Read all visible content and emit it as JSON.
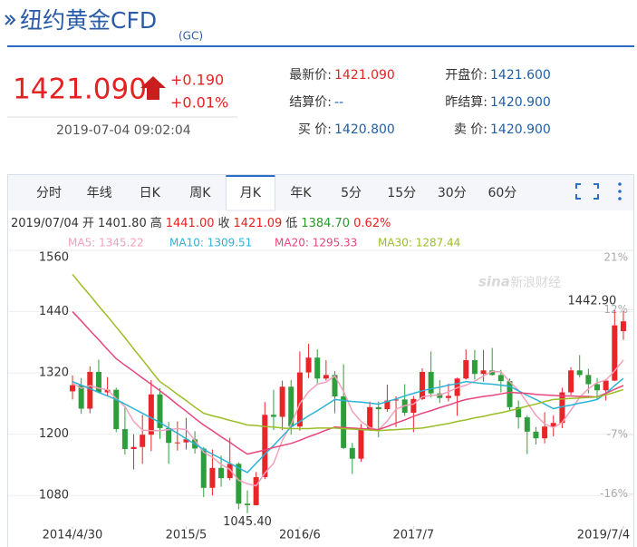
{
  "header": {
    "title": "纽约黄金CFD",
    "code": "(GC)"
  },
  "quote": {
    "price": "1421.090",
    "change": "+0.190",
    "change_pct": "+0.01%",
    "time": "2019-07-04 09:02:04"
  },
  "stats": [
    {
      "label": "最新价:",
      "value": "1421.090",
      "color": "#e52222"
    },
    {
      "label": "开盘价:",
      "value": "1421.600",
      "color": "#1f5fa8"
    },
    {
      "label": "结算价:",
      "value": "--",
      "color": "#1f5fa8"
    },
    {
      "label": "昨结算:",
      "value": "1420.900",
      "color": "#1f5fa8"
    },
    {
      "label": "买 价:",
      "value": "1420.800",
      "color": "#1f5fa8"
    },
    {
      "label": "卖 价:",
      "value": "1420.900",
      "color": "#1f5fa8"
    }
  ],
  "tabs": [
    "分时",
    "年线",
    "日K",
    "周K",
    "月K",
    "年K",
    "5分",
    "15分",
    "30分",
    "60分"
  ],
  "active_tab": "月K",
  "ohlc_bar": {
    "date": "2019/07/04",
    "items": [
      {
        "label": "开",
        "value": "1401.80",
        "color": "#333333"
      },
      {
        "label": "高",
        "value": "1441.00",
        "color": "#e52222"
      },
      {
        "label": "收",
        "value": "1421.09",
        "color": "#e52222"
      },
      {
        "label": "低",
        "value": "1384.70",
        "color": "#2a9a2a"
      }
    ],
    "pct": "0.62%"
  },
  "watermark": {
    "logo": "sina",
    "text": "新浪财经"
  },
  "chart_data": {
    "type": "candlestick",
    "categories": [
      "2014/4/30",
      null,
      null,
      null,
      null,
      null,
      null,
      null,
      null,
      null,
      null,
      null,
      null,
      "2015/5",
      null,
      null,
      null,
      null,
      null,
      null,
      null,
      null,
      null,
      null,
      null,
      null,
      "2016/6",
      null,
      null,
      null,
      null,
      null,
      null,
      null,
      null,
      null,
      null,
      null,
      null,
      "2017/7",
      null,
      null,
      null,
      null,
      null,
      null,
      null,
      null,
      null,
      null,
      null,
      null,
      null,
      null,
      null,
      null,
      null,
      null,
      null,
      null,
      null,
      null,
      null,
      "2019/7/4"
    ],
    "open": [
      1284,
      1296,
      1250,
      1322,
      1282,
      1287,
      1210,
      1171,
      1175,
      1199,
      1278,
      1212,
      1183,
      1184,
      1190,
      1172,
      1095,
      1134,
      1114,
      1142,
      1064,
      1061,
      1116,
      1238,
      1234,
      1293,
      1215,
      1321,
      1350,
      1309,
      1316,
      1274,
      1173,
      1152,
      1211,
      1253,
      1249,
      1266,
      1268,
      1242,
      1269,
      1322,
      1280,
      1271,
      1275,
      1309,
      1345,
      1318,
      1325,
      1316,
      1304,
      1253,
      1233,
      1205,
      1192,
      1215,
      1222,
      1282,
      1325,
      1316,
      1298,
      1286,
      1305,
      1401.8
    ],
    "high": [
      1315,
      1310,
      1333,
      1346,
      1312,
      1291,
      1255,
      1200,
      1238,
      1306,
      1290,
      1224,
      1225,
      1232,
      1206,
      1175,
      1170,
      1158,
      1193,
      1145,
      1090,
      1126,
      1263,
      1287,
      1305,
      1306,
      1362,
      1377,
      1366,
      1345,
      1323,
      1337,
      1183,
      1220,
      1264,
      1264,
      1297,
      1274,
      1298,
      1275,
      1329,
      1362,
      1306,
      1299,
      1311,
      1366,
      1365,
      1365,
      1369,
      1326,
      1309,
      1266,
      1237,
      1214,
      1243,
      1237,
      1291,
      1331,
      1355,
      1328,
      1310,
      1308,
      1442.9,
      1441
    ],
    "low": [
      1268,
      1240,
      1241,
      1280,
      1274,
      1204,
      1160,
      1131,
      1142,
      1167,
      1191,
      1142,
      1168,
      1170,
      1162,
      1077,
      1080,
      1097,
      1110,
      1053,
      1045.4,
      1061,
      1112,
      1208,
      1208,
      1199,
      1207,
      1310,
      1300,
      1305,
      1241,
      1171,
      1122,
      1146,
      1209,
      1194,
      1244,
      1214,
      1236,
      1204,
      1267,
      1272,
      1261,
      1264,
      1236,
      1307,
      1307,
      1303,
      1315,
      1282,
      1245,
      1211,
      1161,
      1180,
      1182,
      1196,
      1212,
      1277,
      1311,
      1280,
      1267,
      1266,
      1304,
      1384.7
    ],
    "close": [
      1296,
      1250,
      1322,
      1282,
      1287,
      1210,
      1171,
      1175,
      1199,
      1278,
      1212,
      1183,
      1184,
      1190,
      1172,
      1095,
      1134,
      1114,
      1142,
      1064,
      1061,
      1116,
      1238,
      1234,
      1293,
      1215,
      1321,
      1350,
      1309,
      1316,
      1274,
      1173,
      1152,
      1211,
      1253,
      1249,
      1266,
      1268,
      1242,
      1269,
      1322,
      1280,
      1271,
      1275,
      1309,
      1345,
      1318,
      1325,
      1316,
      1304,
      1253,
      1233,
      1205,
      1192,
      1215,
      1222,
      1282,
      1325,
      1316,
      1298,
      1286,
      1305,
      1413,
      1421.09
    ],
    "up_color": "#e8262a",
    "down_color": "#2e9e3c",
    "series": [
      {
        "name": "MA5: 1345.22",
        "color": "#f2a0bd",
        "values": [
          1300,
          1290,
          1295,
          1290,
          1287,
          1270,
          1254,
          1225,
          1208,
          1207,
          1207,
          1209,
          1211,
          1209,
          1188,
          1165,
          1155,
          1141,
          1131,
          1110,
          1103,
          1099,
          1124,
          1143,
          1188,
          1219,
          1260,
          1283,
          1298,
          1302,
          1314,
          1284,
          1245,
          1225,
          1213,
          1208,
          1226,
          1249,
          1256,
          1259,
          1273,
          1276,
          1277,
          1283,
          1291,
          1296,
          1304,
          1314,
          1323,
          1322,
          1303,
          1286,
          1262,
          1237,
          1220,
          1213,
          1223,
          1247,
          1272,
          1289,
          1301,
          1306,
          1324,
          1345.22
        ]
      },
      {
        "name": "MA10: 1309.51",
        "color": "#2bb3d6",
        "values": [
          1303,
          1296,
          1289,
          1282,
          1275,
          1268,
          1259,
          1250,
          1241,
          1232,
          1223,
          1212,
          1202,
          1191,
          1181,
          1170,
          1161,
          1152,
          1143,
          1134,
          1125,
          1143,
          1161,
          1178,
          1196,
          1214,
          1225,
          1236,
          1246,
          1257,
          1268,
          1266,
          1264,
          1263,
          1261,
          1259,
          1264,
          1269,
          1275,
          1280,
          1285,
          1289,
          1292,
          1296,
          1299,
          1303,
          1301,
          1299,
          1298,
          1296,
          1294,
          1285,
          1276,
          1268,
          1259,
          1250,
          1254,
          1257,
          1261,
          1264,
          1268,
          1280,
          1295,
          1309.51
        ]
      },
      {
        "name": "MA20: 1295.33",
        "color": "#e8457a",
        "values": [
          1440,
          1422,
          1403,
          1385,
          1366,
          1348,
          1335,
          1323,
          1310,
          1298,
          1285,
          1272,
          1258,
          1245,
          1231,
          1218,
          1207,
          1195,
          1184,
          1172,
          1161,
          1165,
          1169,
          1174,
          1178,
          1182,
          1188,
          1195,
          1201,
          1208,
          1214,
          1213,
          1212,
          1211,
          1210,
          1209,
          1215,
          1222,
          1228,
          1235,
          1241,
          1246,
          1252,
          1257,
          1263,
          1268,
          1271,
          1274,
          1276,
          1279,
          1282,
          1281,
          1280,
          1278,
          1277,
          1276,
          1275,
          1275,
          1274,
          1274,
          1273,
          1280,
          1288,
          1295.33
        ]
      },
      {
        "name": "MA30: 1287.44",
        "color": "#9bbd26",
        "values": [
          1513,
          1492,
          1472,
          1451,
          1431,
          1410,
          1389,
          1367,
          1346,
          1324,
          1303,
          1291,
          1278,
          1266,
          1253,
          1241,
          1236,
          1232,
          1227,
          1223,
          1218,
          1217,
          1215,
          1214,
          1212,
          1211,
          1211,
          1211,
          1212,
          1212,
          1212,
          1211,
          1210,
          1209,
          1208,
          1207,
          1208,
          1209,
          1210,
          1211,
          1212,
          1215,
          1218,
          1221,
          1225,
          1228,
          1232,
          1235,
          1239,
          1242,
          1246,
          1250,
          1255,
          1259,
          1264,
          1268,
          1269,
          1270,
          1271,
          1272,
          1273,
          1277,
          1282,
          1287.44
        ]
      }
    ],
    "ylim": [
      1020,
      1560
    ],
    "yticks": [
      1080,
      1200,
      1320,
      1440,
      1560
    ],
    "y2lim": [
      -20.9,
      21
    ],
    "y2ticks": [
      {
        "value": -16,
        "label": "-16%"
      },
      {
        "value": -7,
        "label": "-7%"
      },
      {
        "value": 12,
        "label": "12%"
      },
      {
        "value": 21,
        "label": "21%"
      }
    ],
    "grid": true,
    "annotations": [
      {
        "label": "1442.90",
        "value": 1442.9
      },
      {
        "label": "1045.40",
        "value": 1045.4
      }
    ]
  }
}
